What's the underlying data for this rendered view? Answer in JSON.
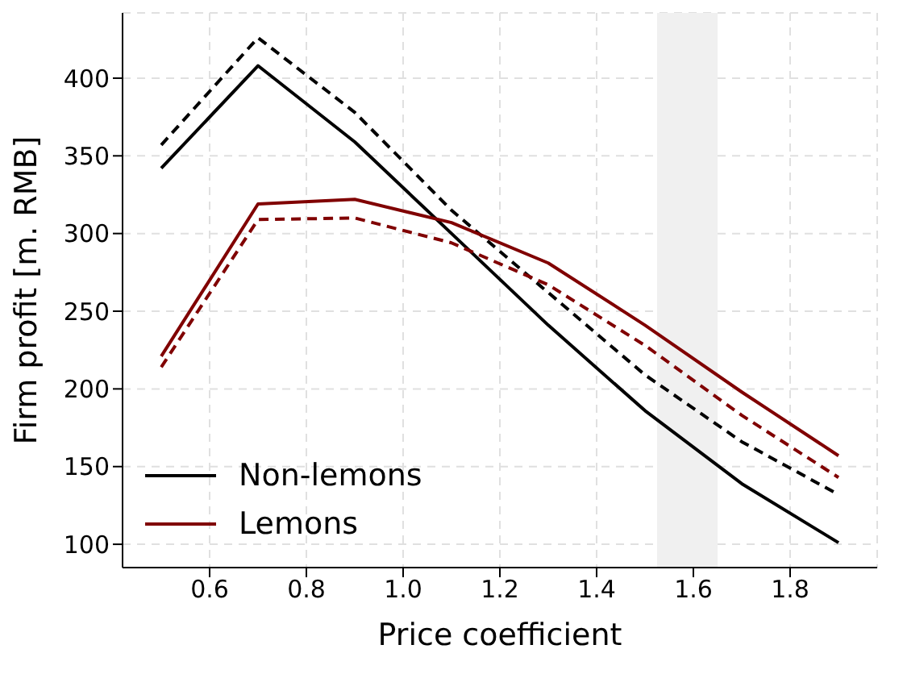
{
  "chart_data": {
    "type": "line",
    "xlabel": "Price coefficient",
    "ylabel": "Firm profit [m. RMB]",
    "x": [
      0.5,
      0.7,
      0.9,
      1.1,
      1.3,
      1.5,
      1.7,
      1.9
    ],
    "series": [
      {
        "name": "Non-lemons",
        "color": "#000000",
        "values": [
          342,
          408,
          359,
          300,
          241,
          186,
          139,
          101
        ],
        "line_style": "solid"
      },
      {
        "color": "#000000",
        "values": [
          357,
          426,
          378,
          315,
          262,
          209,
          166,
          132
        ],
        "line_style": "dashed"
      },
      {
        "name": "Lemons",
        "color": "#800000",
        "values": [
          221,
          319,
          322,
          307,
          281,
          241,
          198,
          157
        ],
        "line_style": "solid"
      },
      {
        "color": "#800000",
        "values": [
          214,
          309,
          310,
          294,
          267,
          228,
          183,
          143
        ],
        "line_style": "dashed"
      }
    ],
    "xlim": [
      0.42,
      1.98
    ],
    "xticks": [
      {
        "value": 0.6,
        "label": "0.6"
      },
      {
        "value": 0.8,
        "label": "0.8"
      },
      {
        "value": 1,
        "label": "1.0"
      },
      {
        "value": 1.2,
        "label": "1.2"
      },
      {
        "value": 1.4,
        "label": "1.4"
      },
      {
        "value": 1.6,
        "label": "1.6"
      },
      {
        "value": 1.8,
        "label": "1.8"
      }
    ],
    "ylim": [
      85,
      442
    ],
    "yticks": [
      100,
      150,
      200,
      250,
      300,
      350,
      400
    ],
    "bands": [
      {
        "axis": "x",
        "from": 1.525,
        "to": 1.65,
        "color": "#f0f0f0"
      }
    ],
    "grid": true,
    "legend": "bottom left",
    "marker": "none"
  }
}
